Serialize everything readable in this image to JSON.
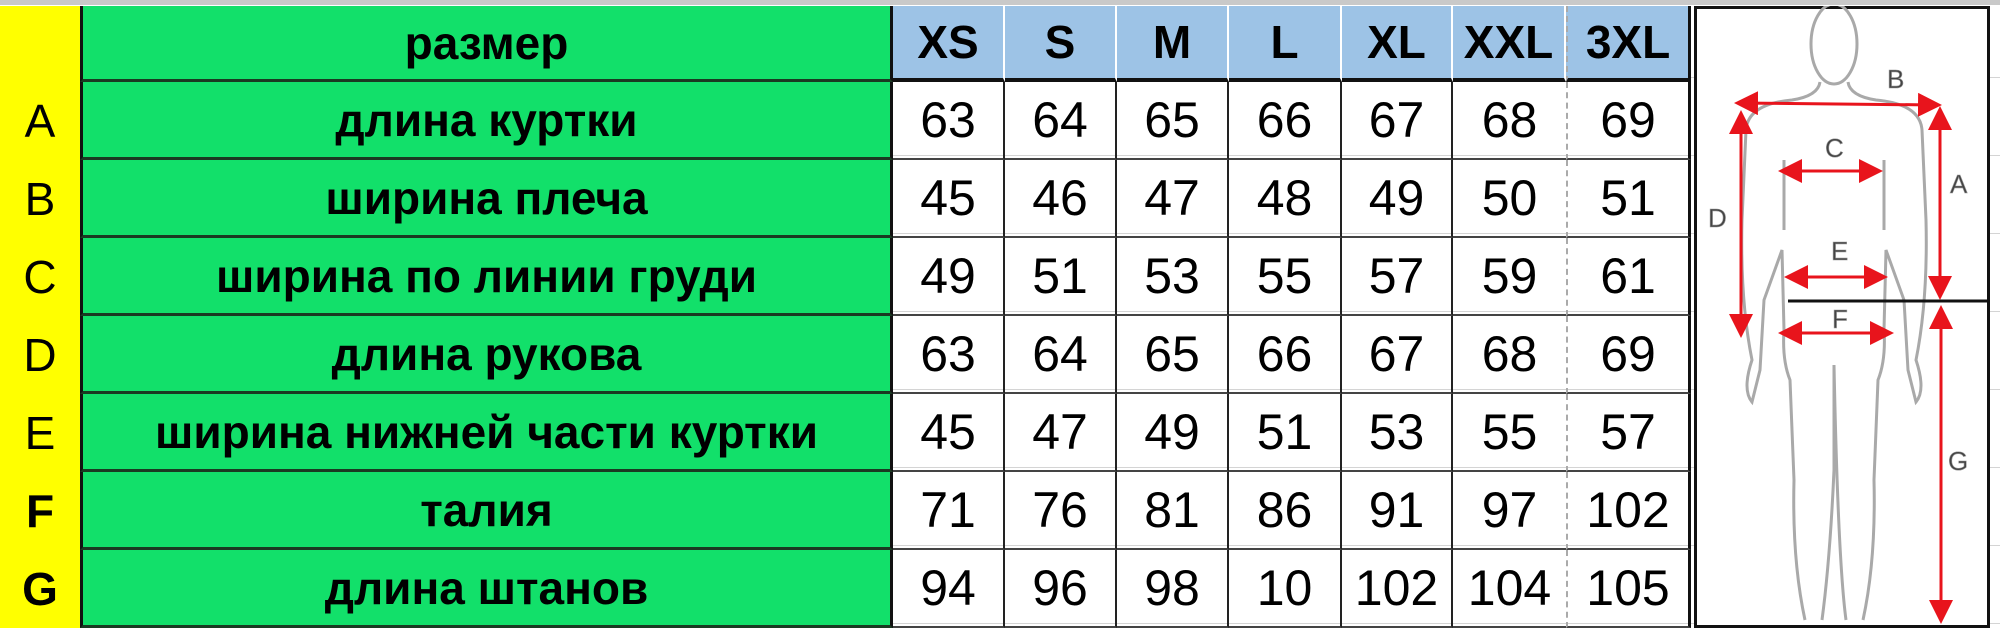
{
  "header": {
    "label": "размер",
    "sizes": [
      "XS",
      "S",
      "M",
      "L",
      "XL",
      "XXL",
      "3XL"
    ]
  },
  "rows": [
    {
      "letter": "A",
      "label": "длина куртки",
      "values": [
        "63",
        "64",
        "65",
        "66",
        "67",
        "68",
        "69"
      ]
    },
    {
      "letter": "B",
      "label": "ширина плеча",
      "values": [
        "45",
        "46",
        "47",
        "48",
        "49",
        "50",
        "51"
      ]
    },
    {
      "letter": "C",
      "label": "ширина по линии груди",
      "values": [
        "49",
        "51",
        "53",
        "55",
        "57",
        "59",
        "61"
      ]
    },
    {
      "letter": "D",
      "label": "длина рукова",
      "values": [
        "63",
        "64",
        "65",
        "66",
        "67",
        "68",
        "69"
      ]
    },
    {
      "letter": "E",
      "label": "ширина нижней части куртки",
      "values": [
        "45",
        "47",
        "49",
        "51",
        "53",
        "55",
        "57"
      ]
    },
    {
      "letter": "F",
      "label": "талия",
      "values": [
        "71",
        "76",
        "81",
        "86",
        "91",
        "97",
        "102"
      ]
    },
    {
      "letter": "G",
      "label": "длина штанов",
      "values": [
        "94",
        "96",
        "98",
        "10",
        "102",
        "104",
        "105"
      ]
    }
  ],
  "figure": {
    "labels": {
      "A": "A",
      "B": "B",
      "C": "C",
      "D": "D",
      "E": "E",
      "F": "F",
      "G": "G"
    }
  },
  "colors": {
    "letter_bg": "#ffff00",
    "label_bg": "#12e06a",
    "size_bg": "#9dc3e6",
    "arrow": "#e8141c"
  }
}
